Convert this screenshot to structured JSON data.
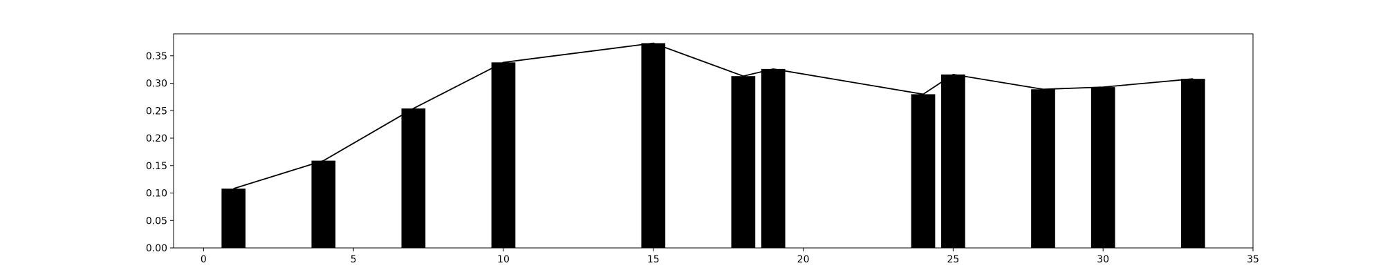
{
  "chart_data": {
    "type": "bar",
    "title": "",
    "xlabel": "",
    "ylabel": "",
    "xlim": [
      -1,
      35
    ],
    "ylim": [
      0,
      0.39
    ],
    "grid": false,
    "legend": "none",
    "x_ticks": [
      0,
      5,
      10,
      15,
      20,
      25,
      30,
      35
    ],
    "y_ticks": [
      0.0,
      0.05,
      0.1,
      0.15,
      0.2,
      0.25,
      0.3,
      0.35
    ],
    "x_tick_labels": [
      "0",
      "5",
      "10",
      "15",
      "20",
      "25",
      "30",
      "35"
    ],
    "y_tick_labels": [
      "0.00",
      "0.05",
      "0.10",
      "0.15",
      "0.20",
      "0.25",
      "0.30",
      "0.35"
    ],
    "bar_width": 0.8,
    "x": [
      1,
      4,
      7,
      10,
      15,
      18,
      19,
      24,
      25,
      28,
      30,
      33
    ],
    "values": [
      0.108,
      0.159,
      0.254,
      0.338,
      0.373,
      0.313,
      0.326,
      0.28,
      0.316,
      0.289,
      0.293,
      0.308
    ],
    "line_values": [
      0.108,
      0.159,
      0.254,
      0.338,
      0.373,
      0.313,
      0.326,
      0.28,
      0.316,
      0.289,
      0.293,
      0.308
    ],
    "colors": {
      "bar": "#000000",
      "line": "#000000",
      "axes": "#000000",
      "background": "#ffffff"
    }
  }
}
